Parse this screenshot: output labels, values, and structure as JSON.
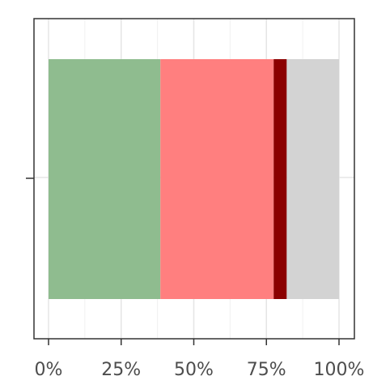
{
  "chart_data": {
    "type": "bar",
    "orientation": "horizontal",
    "stacked": true,
    "categories": [
      ""
    ],
    "series": [
      {
        "color": "#8fbc8f",
        "values": [
          38.5
        ]
      },
      {
        "color": "#ff7f7f",
        "values": [
          39.0
        ]
      },
      {
        "color": "#8b0000",
        "values": [
          4.5
        ]
      },
      {
        "color": "#d3d3d3",
        "values": [
          18.0
        ]
      }
    ],
    "xlim": [
      0,
      100
    ],
    "x_ticks": [
      0,
      25,
      50,
      75,
      100
    ],
    "x_tick_labels": [
      "0%",
      "25%",
      "50%",
      "75%",
      "100%"
    ],
    "grid": true,
    "legend": "none",
    "title": "",
    "xlabel": "",
    "ylabel": ""
  }
}
